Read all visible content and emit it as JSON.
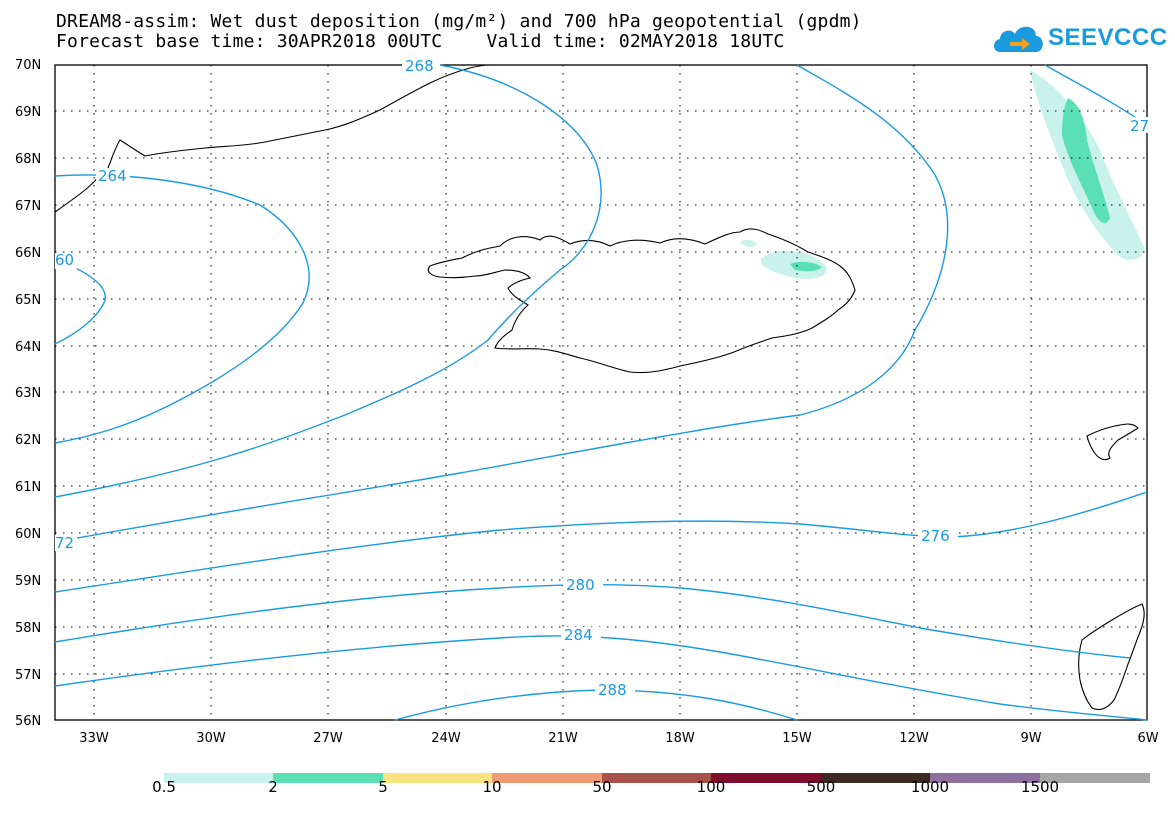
{
  "title": {
    "line1": "DREAM8-assim: Wet dust deposition (mg/m²) and 700 hPa geopotential (gpdm)",
    "line2": "Forecast base time: 30APR2018 00UTC    Valid time: 02MAY2018 18UTC"
  },
  "logo": {
    "text": "SEEVCCC",
    "icon": "cloud-arrow-icon"
  },
  "map": {
    "lat_labels": [
      "70N",
      "69N",
      "68N",
      "67N",
      "66N",
      "65N",
      "64N",
      "63N",
      "62N",
      "61N",
      "60N",
      "59N",
      "58N",
      "57N",
      "56N"
    ],
    "lon_labels": [
      "33W",
      "30W",
      "27W",
      "24W",
      "21W",
      "18W",
      "15W",
      "12W",
      "9W",
      "6W"
    ],
    "lat_range": [
      56,
      70
    ],
    "lon_range": [
      -34.4,
      -6
    ],
    "contour_labels": [
      "268",
      "264",
      "60",
      "27",
      "72",
      "276",
      "280",
      "284",
      "288"
    ],
    "contour_color": "#1a9be0"
  },
  "legend": {
    "labels": [
      "0.5",
      "2",
      "5",
      "10",
      "50",
      "100",
      "500",
      "1000",
      "1500"
    ],
    "colors": [
      "#c9f2ec",
      "#5be0b5",
      "#f9e47f",
      "#ef9a72",
      "#a6524a",
      "#7e0c2c",
      "#3b2a22",
      "#8f6f9e",
      "#a6a6a6"
    ]
  }
}
